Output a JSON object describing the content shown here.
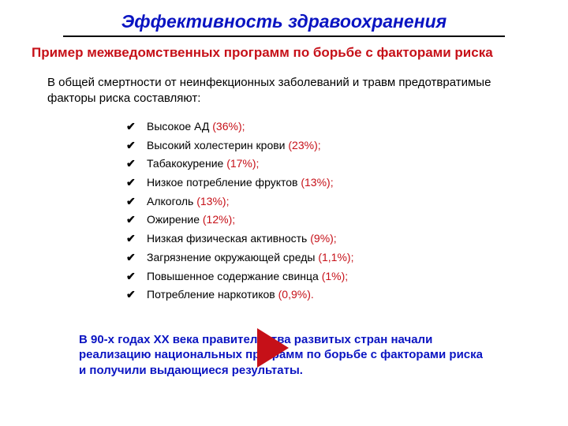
{
  "colors": {
    "title": "#0a14c2",
    "underline": "#000000",
    "subtitle": "#c61018",
    "body": "#000000",
    "pct": "#c61018",
    "closing": "#0a14c2",
    "arrow": "#c61018",
    "background": "#ffffff"
  },
  "title": "Эффективность здравоохранения",
  "subtitle": "Пример межведомственных программ по борьбе с факторами риска",
  "intro": "В общей смертности от неинфекционных заболеваний и травм предотвратимые факторы риска составляют:",
  "bullets": [
    {
      "label": "Высокое АД",
      "pct": "(36%);"
    },
    {
      "label": "Высокий холестерин крови",
      "pct": "(23%);"
    },
    {
      "label": "Табакокурение",
      "pct": "(17%);"
    },
    {
      "label": "Низкое потребление фруктов",
      "pct": "(13%);"
    },
    {
      "label": "Алкоголь",
      "pct": "(13%);"
    },
    {
      "label": "Ожирение",
      "pct": "(12%);"
    },
    {
      "label": "Низкая физическая активность",
      "pct": "(9%);"
    },
    {
      "label": "Загрязнение окружающей среды",
      "pct": "(1,1%);"
    },
    {
      "label": "Повышенное содержание свинца",
      "pct": "(1%);"
    },
    {
      "label": "Потребление наркотиков",
      "pct": "(0,9%)."
    }
  ],
  "closing": "В 90-х годах ХХ века правительства развитых стран начали реализацию национальных программ по борьбе с факторами риска и получили выдающиеся результаты.",
  "bullet_glyph": "✔",
  "fontsize": {
    "title": 23,
    "subtitle": 17,
    "intro": 15,
    "bullet": 14,
    "closing": 15
  }
}
